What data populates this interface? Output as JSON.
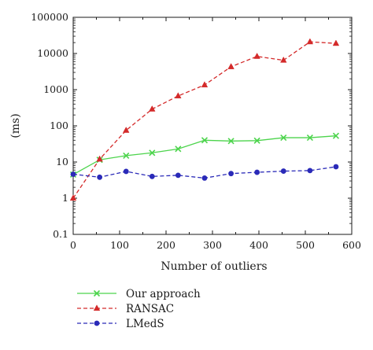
{
  "chart_data": {
    "type": "line",
    "xlabel": "Number of outliers",
    "ylabel": "(ms)",
    "xlim": [
      0,
      600
    ],
    "ylim": [
      0.1,
      100000
    ],
    "yscale": "log",
    "grid": false,
    "legend_position": "bottom-left, below plot",
    "x_ticks": [
      "0",
      "100",
      "200",
      "300",
      "400",
      "500",
      "600"
    ],
    "y_ticks": [
      "0.1",
      "1",
      "10",
      "100",
      "1000",
      "10000",
      "100000"
    ],
    "series": [
      {
        "name": "Our approach",
        "color": "#4cd44c",
        "marker": "x",
        "dash": "solid",
        "x": [
          0,
          57,
          114,
          170,
          226,
          283,
          340,
          396,
          453,
          510,
          566
        ],
        "values": [
          4.5,
          11.5,
          15,
          18,
          23,
          40,
          38,
          39,
          47,
          47,
          53
        ]
      },
      {
        "name": "RANSAC",
        "color": "#d42a2a",
        "marker": "triangle",
        "dash": "dashed",
        "x": [
          0,
          57,
          114,
          170,
          226,
          283,
          340,
          396,
          453,
          510,
          566
        ],
        "values": [
          1,
          12,
          75,
          290,
          670,
          1350,
          4300,
          8300,
          6500,
          21000,
          19000
        ]
      },
      {
        "name": "LMedS",
        "color": "#2a2ab8",
        "marker": "circle",
        "dash": "dashed",
        "x": [
          0,
          57,
          114,
          170,
          226,
          283,
          340,
          396,
          453,
          510,
          566
        ],
        "values": [
          4.6,
          3.8,
          5.5,
          4.0,
          4.3,
          3.6,
          4.8,
          5.2,
          5.6,
          5.8,
          7.4
        ]
      }
    ]
  }
}
